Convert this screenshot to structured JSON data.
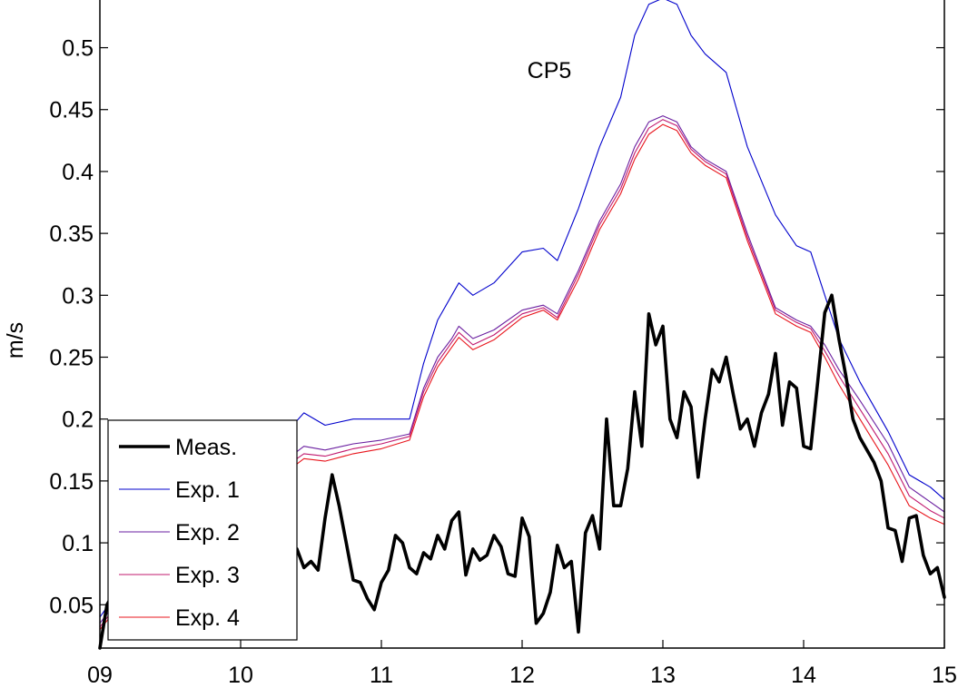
{
  "chart_data": {
    "type": "line",
    "title": "CP5",
    "xlabel": "",
    "ylabel": "m/s",
    "xlim": [
      9,
      15
    ],
    "ylim": [
      0.015,
      0.54
    ],
    "grid": false,
    "legend_position": "bottom-left",
    "x_ticks": [
      {
        "value": 9,
        "label": "09"
      },
      {
        "value": 10,
        "label": "10"
      },
      {
        "value": 11,
        "label": "11"
      },
      {
        "value": 12,
        "label": "12"
      },
      {
        "value": 13,
        "label": "13"
      },
      {
        "value": 14,
        "label": "14"
      },
      {
        "value": 15,
        "label": "15"
      }
    ],
    "y_ticks": [
      {
        "value": 0.05,
        "label": "0.05"
      },
      {
        "value": 0.1,
        "label": "0.1"
      },
      {
        "value": 0.15,
        "label": "0.15"
      },
      {
        "value": 0.2,
        "label": "0.2"
      },
      {
        "value": 0.25,
        "label": "0.25"
      },
      {
        "value": 0.3,
        "label": "0.3"
      },
      {
        "value": 0.35,
        "label": "0.35"
      },
      {
        "value": 0.4,
        "label": "0.4"
      },
      {
        "value": 0.45,
        "label": "0.45"
      },
      {
        "value": 0.5,
        "label": "0.5"
      }
    ],
    "series": [
      {
        "name": "Meas.",
        "color": "#000000",
        "x": [
          9.0,
          9.05,
          9.1,
          9.2,
          9.4,
          9.6,
          9.8,
          10.0,
          10.1,
          10.15,
          10.2,
          10.25,
          10.3,
          10.35,
          10.4,
          10.45,
          10.5,
          10.55,
          10.6,
          10.65,
          10.7,
          10.75,
          10.8,
          10.85,
          10.9,
          10.95,
          11.0,
          11.05,
          11.1,
          11.15,
          11.2,
          11.25,
          11.3,
          11.35,
          11.4,
          11.45,
          11.5,
          11.55,
          11.6,
          11.65,
          11.7,
          11.75,
          11.8,
          11.85,
          11.9,
          11.95,
          12.0,
          12.05,
          12.1,
          12.15,
          12.2,
          12.25,
          12.3,
          12.35,
          12.4,
          12.45,
          12.5,
          12.55,
          12.6,
          12.65,
          12.7,
          12.75,
          12.8,
          12.85,
          12.9,
          12.95,
          13.0,
          13.05,
          13.1,
          13.15,
          13.2,
          13.25,
          13.3,
          13.35,
          13.4,
          13.45,
          13.5,
          13.55,
          13.6,
          13.65,
          13.7,
          13.75,
          13.8,
          13.85,
          13.9,
          13.95,
          14.0,
          14.05,
          14.1,
          14.15,
          14.2,
          14.25,
          14.3,
          14.35,
          14.4,
          14.45,
          14.5,
          14.55,
          14.6,
          14.65,
          14.7,
          14.75,
          14.8,
          14.85,
          14.9,
          14.95,
          15.0
        ],
        "y": [
          0.015,
          0.05,
          0.06,
          0.07,
          0.08,
          0.09,
          0.1,
          0.11,
          0.1,
          0.1,
          0.1,
          0.104,
          0.118,
          0.1,
          0.095,
          0.08,
          0.085,
          0.078,
          0.12,
          0.155,
          0.13,
          0.1,
          0.07,
          0.068,
          0.055,
          0.046,
          0.068,
          0.078,
          0.106,
          0.1,
          0.08,
          0.075,
          0.092,
          0.087,
          0.106,
          0.095,
          0.118,
          0.125,
          0.074,
          0.095,
          0.086,
          0.09,
          0.106,
          0.097,
          0.075,
          0.073,
          0.12,
          0.105,
          0.035,
          0.043,
          0.06,
          0.098,
          0.08,
          0.085,
          0.028,
          0.108,
          0.122,
          0.095,
          0.2,
          0.13,
          0.13,
          0.16,
          0.222,
          0.178,
          0.285,
          0.26,
          0.275,
          0.2,
          0.185,
          0.222,
          0.21,
          0.153,
          0.2,
          0.24,
          0.23,
          0.25,
          0.22,
          0.192,
          0.2,
          0.178,
          0.205,
          0.22,
          0.253,
          0.195,
          0.23,
          0.225,
          0.178,
          0.176,
          0.23,
          0.286,
          0.3,
          0.265,
          0.235,
          0.2,
          0.185,
          0.175,
          0.165,
          0.15,
          0.112,
          0.11,
          0.085,
          0.12,
          0.122,
          0.09,
          0.075,
          0.08,
          0.056
        ]
      },
      {
        "name": "Exp. 1",
        "color": "#0000cc",
        "x": [
          9.0,
          9.5,
          10.0,
          10.3,
          10.45,
          10.6,
          10.8,
          11.0,
          11.2,
          11.3,
          11.4,
          11.5,
          11.55,
          11.65,
          11.8,
          12.0,
          12.15,
          12.25,
          12.4,
          12.55,
          12.7,
          12.8,
          12.9,
          13.0,
          13.1,
          13.2,
          13.3,
          13.45,
          13.6,
          13.8,
          13.95,
          14.05,
          14.15,
          14.25,
          14.4,
          14.6,
          14.75,
          14.9,
          15.0
        ],
        "y": [
          0.04,
          0.12,
          0.178,
          0.186,
          0.205,
          0.195,
          0.2,
          0.2,
          0.2,
          0.245,
          0.28,
          0.3,
          0.31,
          0.3,
          0.31,
          0.335,
          0.338,
          0.328,
          0.37,
          0.42,
          0.46,
          0.51,
          0.535,
          0.54,
          0.535,
          0.51,
          0.495,
          0.48,
          0.42,
          0.365,
          0.34,
          0.335,
          0.3,
          0.265,
          0.23,
          0.19,
          0.155,
          0.145,
          0.135
        ]
      },
      {
        "name": "Exp. 2",
        "color": "#6a1fa0",
        "x": [
          9.0,
          9.5,
          10.0,
          10.3,
          10.45,
          10.6,
          10.8,
          11.0,
          11.2,
          11.3,
          11.4,
          11.5,
          11.55,
          11.65,
          11.8,
          12.0,
          12.15,
          12.25,
          12.4,
          12.55,
          12.7,
          12.8,
          12.9,
          13.0,
          13.1,
          13.2,
          13.3,
          13.45,
          13.6,
          13.8,
          13.95,
          14.05,
          14.15,
          14.25,
          14.4,
          14.6,
          14.75,
          14.9,
          15.0
        ],
        "y": [
          0.035,
          0.11,
          0.155,
          0.165,
          0.178,
          0.175,
          0.18,
          0.183,
          0.188,
          0.225,
          0.25,
          0.265,
          0.275,
          0.265,
          0.272,
          0.288,
          0.292,
          0.285,
          0.32,
          0.36,
          0.39,
          0.42,
          0.44,
          0.445,
          0.44,
          0.42,
          0.41,
          0.4,
          0.35,
          0.29,
          0.28,
          0.275,
          0.26,
          0.24,
          0.215,
          0.18,
          0.145,
          0.133,
          0.125
        ]
      },
      {
        "name": "Exp. 3",
        "color": "#c0186e",
        "x": [
          9.0,
          9.5,
          10.0,
          10.3,
          10.45,
          10.6,
          10.8,
          11.0,
          11.2,
          11.3,
          11.4,
          11.5,
          11.55,
          11.65,
          11.8,
          12.0,
          12.15,
          12.25,
          12.4,
          12.55,
          12.7,
          12.8,
          12.9,
          13.0,
          13.1,
          13.2,
          13.3,
          13.45,
          13.6,
          13.8,
          13.95,
          14.05,
          14.15,
          14.25,
          14.4,
          14.6,
          14.75,
          14.9,
          15.0
        ],
        "y": [
          0.032,
          0.105,
          0.148,
          0.16,
          0.172,
          0.17,
          0.176,
          0.18,
          0.186,
          0.222,
          0.246,
          0.262,
          0.27,
          0.26,
          0.268,
          0.285,
          0.29,
          0.282,
          0.317,
          0.357,
          0.386,
          0.415,
          0.435,
          0.442,
          0.437,
          0.418,
          0.408,
          0.398,
          0.347,
          0.288,
          0.278,
          0.273,
          0.255,
          0.235,
          0.208,
          0.172,
          0.138,
          0.126,
          0.12
        ]
      },
      {
        "name": "Exp. 4",
        "color": "#e8151c",
        "x": [
          9.0,
          9.5,
          10.0,
          10.3,
          10.45,
          10.6,
          10.8,
          11.0,
          11.2,
          11.3,
          11.4,
          11.5,
          11.55,
          11.65,
          11.8,
          12.0,
          12.15,
          12.25,
          12.4,
          12.55,
          12.7,
          12.8,
          12.9,
          13.0,
          13.1,
          13.2,
          13.3,
          13.45,
          13.6,
          13.8,
          13.95,
          14.05,
          14.15,
          14.25,
          14.4,
          14.6,
          14.75,
          14.9,
          15.0
        ],
        "y": [
          0.03,
          0.1,
          0.145,
          0.155,
          0.168,
          0.166,
          0.172,
          0.176,
          0.183,
          0.218,
          0.242,
          0.258,
          0.266,
          0.256,
          0.264,
          0.282,
          0.288,
          0.28,
          0.313,
          0.353,
          0.382,
          0.41,
          0.43,
          0.438,
          0.433,
          0.415,
          0.405,
          0.395,
          0.344,
          0.285,
          0.275,
          0.27,
          0.25,
          0.228,
          0.2,
          0.163,
          0.13,
          0.12,
          0.115
        ]
      }
    ]
  }
}
